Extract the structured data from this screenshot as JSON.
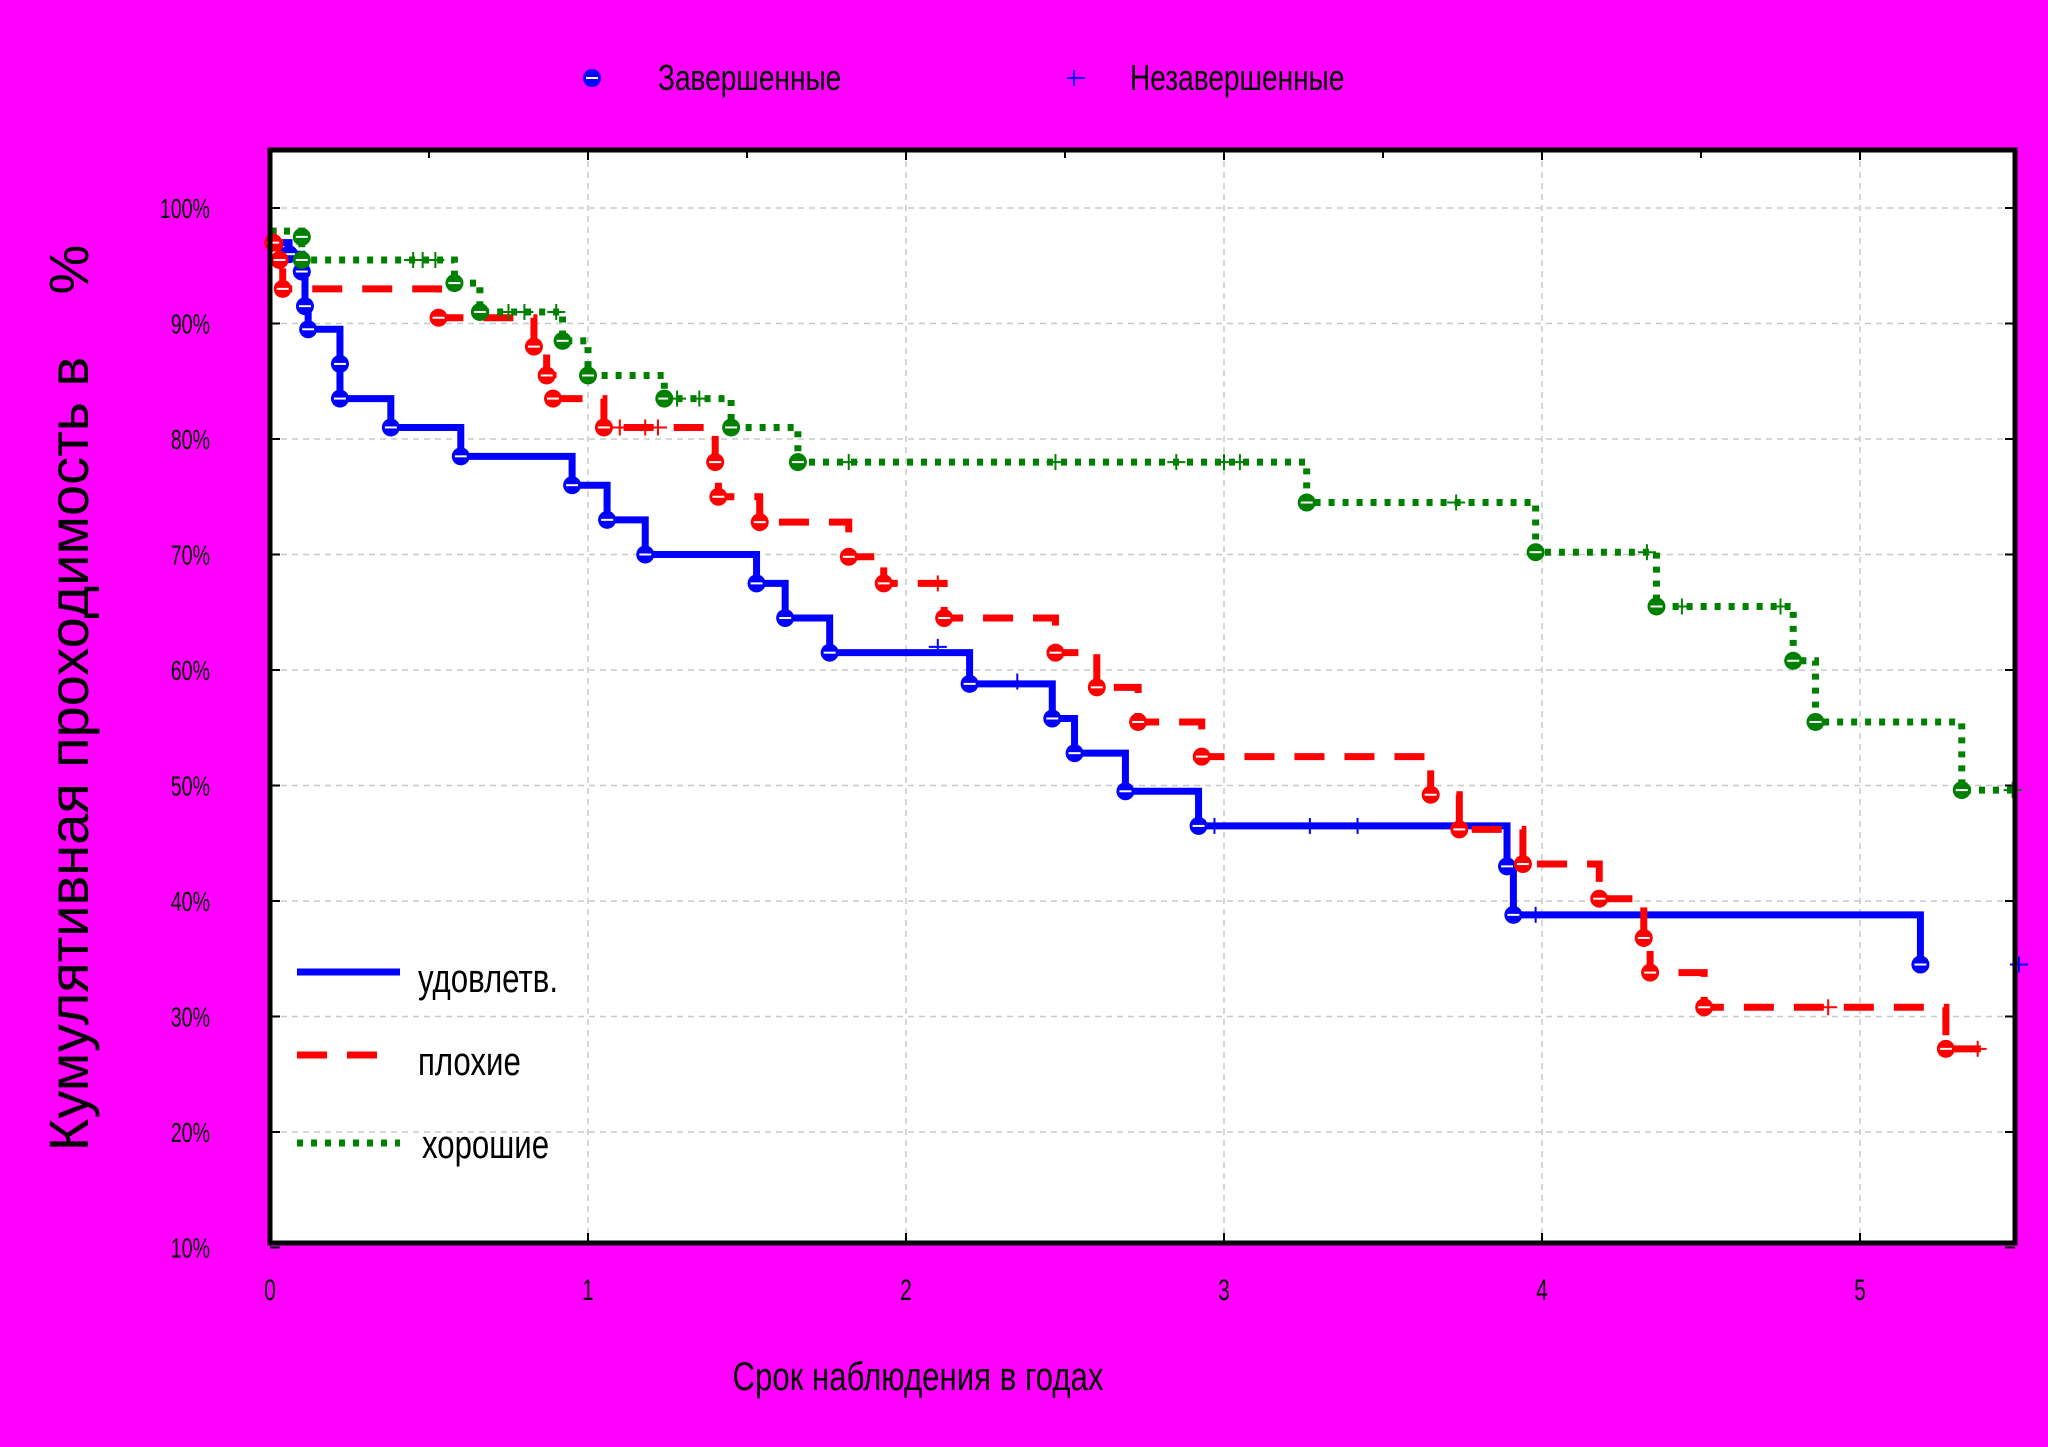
{
  "chart_data": {
    "type": "line",
    "subtype": "kaplan-meier step curves",
    "title": "",
    "xlabel": "Срок наблюдения в годах",
    "ylabel": "Кумулятивная проходимость в    %",
    "xlim": [
      0,
      5.5
    ],
    "ylim": [
      10,
      103
    ],
    "x_ticks": [
      0,
      1,
      2,
      3,
      4,
      5
    ],
    "x_tick_labels": [
      "0",
      "1",
      "2",
      "3",
      "4",
      "5"
    ],
    "y_ticks": [
      10,
      20,
      30,
      40,
      50,
      60,
      70,
      80,
      90,
      100
    ],
    "y_tick_labels": [
      "10%",
      "20%",
      "30%",
      "40%",
      "50%",
      "60%",
      "70%",
      "80%",
      "90%",
      "100%"
    ],
    "grid": true,
    "background_color": "#ff00ff",
    "plot_background": "#ffffff",
    "marker_legend": {
      "position": "top",
      "items": [
        {
          "label": "Завершенные",
          "marker": "circle",
          "color": "#0000ff"
        },
        {
          "label": "Незавершенные",
          "marker": "plus",
          "color": "#0000ff"
        }
      ]
    },
    "legend": {
      "position": "bottom-left"
    },
    "series": [
      {
        "name": "удовлетв.",
        "color": "#0000ff",
        "style": "solid",
        "steps": [
          [
            0,
            97
          ],
          [
            0.06,
            96
          ],
          [
            0.1,
            94.5
          ],
          [
            0.11,
            91.5
          ],
          [
            0.12,
            89.5
          ],
          [
            0.22,
            86.5
          ],
          [
            0.22,
            83.5
          ],
          [
            0.38,
            81
          ],
          [
            0.6,
            78.5
          ],
          [
            0.95,
            76
          ],
          [
            1.06,
            73
          ],
          [
            1.18,
            70
          ],
          [
            1.53,
            67.5
          ],
          [
            1.62,
            64.5
          ],
          [
            1.76,
            61.5
          ],
          [
            2.2,
            58.8
          ],
          [
            2.46,
            55.8
          ],
          [
            2.53,
            52.8
          ],
          [
            2.69,
            49.5
          ],
          [
            2.92,
            46.5
          ],
          [
            3.89,
            43
          ],
          [
            3.91,
            38.8
          ],
          [
            5.19,
            34.5
          ]
        ],
        "end_x": 5.19,
        "events_x": [
          0.06,
          0.1,
          0.11,
          0.12,
          0.22,
          0.22,
          0.38,
          0.6,
          0.95,
          1.06,
          1.18,
          1.53,
          1.62,
          1.76,
          2.2,
          2.46,
          2.53,
          2.69,
          2.92,
          3.89,
          3.91,
          5.19
        ],
        "censored": [
          [
            2.1,
            62
          ],
          [
            2.35,
            59
          ],
          [
            2.97,
            46.5
          ],
          [
            3.27,
            46.5
          ],
          [
            3.42,
            46.5
          ],
          [
            3.98,
            38.8
          ],
          [
            5.5,
            34.5
          ]
        ]
      },
      {
        "name": "плохие",
        "color": "#ff0000",
        "style": "dashed",
        "steps": [
          [
            0,
            98
          ],
          [
            0.01,
            97
          ],
          [
            0.03,
            95.5
          ],
          [
            0.04,
            93
          ],
          [
            0.53,
            90.5
          ],
          [
            0.83,
            88
          ],
          [
            0.87,
            85.5
          ],
          [
            0.89,
            83.5
          ],
          [
            1.05,
            81
          ],
          [
            1.4,
            78
          ],
          [
            1.41,
            75
          ],
          [
            1.54,
            72.8
          ],
          [
            1.82,
            69.8
          ],
          [
            1.93,
            67.5
          ],
          [
            2.12,
            64.5
          ],
          [
            2.47,
            61.5
          ],
          [
            2.6,
            58.5
          ],
          [
            2.73,
            55.5
          ],
          [
            2.93,
            52.5
          ],
          [
            3.65,
            49.2
          ],
          [
            3.74,
            46.2
          ],
          [
            3.94,
            43.2
          ],
          [
            4.18,
            40.2
          ],
          [
            4.32,
            36.8
          ],
          [
            4.34,
            33.8
          ],
          [
            4.51,
            30.8
          ],
          [
            5.27,
            27.2
          ]
        ],
        "end_x": 5.38,
        "events_x": [
          0.01,
          0.03,
          0.04,
          0.53,
          0.83,
          0.87,
          0.89,
          1.05,
          1.4,
          1.41,
          1.54,
          1.82,
          1.93,
          2.12,
          2.47,
          2.6,
          2.73,
          2.93,
          3.65,
          3.74,
          3.94,
          4.18,
          4.32,
          4.34,
          4.51,
          5.27
        ],
        "censored": [
          [
            1.1,
            81
          ],
          [
            1.18,
            81
          ],
          [
            1.22,
            81
          ],
          [
            2.1,
            67.5
          ],
          [
            4.9,
            30.8
          ],
          [
            5.37,
            27.2
          ]
        ]
      },
      {
        "name": "хорошие",
        "color": "#008000",
        "style": "dotted",
        "steps": [
          [
            0,
            98
          ],
          [
            0.1,
            97.5
          ],
          [
            0.1,
            95.5
          ],
          [
            0.58,
            93.5
          ],
          [
            0.66,
            91
          ],
          [
            0.92,
            88.5
          ],
          [
            1.0,
            85.5
          ],
          [
            1.24,
            83.5
          ],
          [
            1.45,
            81
          ],
          [
            1.66,
            78
          ],
          [
            3.26,
            74.5
          ],
          [
            3.98,
            70.2
          ],
          [
            4.36,
            65.5
          ],
          [
            4.79,
            60.8
          ],
          [
            4.86,
            55.5
          ],
          [
            5.32,
            49.6
          ]
        ],
        "end_x": 5.5,
        "events_x": [
          0.1,
          0.1,
          0.58,
          0.66,
          0.92,
          1.0,
          1.24,
          1.45,
          1.66,
          3.26,
          3.98,
          4.36,
          4.79,
          4.86,
          5.32
        ],
        "censored": [
          [
            0.45,
            95.5
          ],
          [
            0.48,
            95.5
          ],
          [
            0.52,
            95.5
          ],
          [
            0.75,
            91
          ],
          [
            0.8,
            91
          ],
          [
            0.9,
            91
          ],
          [
            1.28,
            83.5
          ],
          [
            1.35,
            83.5
          ],
          [
            1.82,
            78
          ],
          [
            2.47,
            78
          ],
          [
            2.85,
            78
          ],
          [
            3.0,
            78
          ],
          [
            3.05,
            78
          ],
          [
            3.73,
            74.5
          ],
          [
            4.33,
            70.2
          ],
          [
            4.44,
            65.5
          ],
          [
            4.75,
            65.5
          ],
          [
            5.48,
            49.6
          ]
        ]
      }
    ]
  }
}
